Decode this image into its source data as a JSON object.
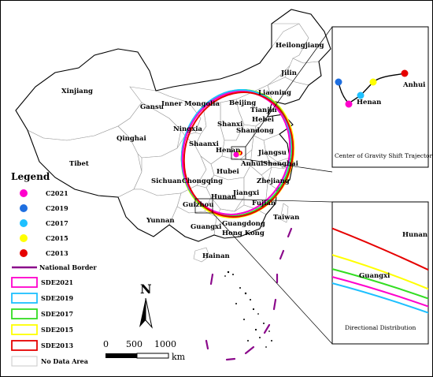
{
  "provinces": [
    {
      "id": "xinjiang",
      "label": "Xinjiang"
    },
    {
      "id": "tibet",
      "label": "Tibet"
    },
    {
      "id": "qinghai",
      "label": "Qinghai"
    },
    {
      "id": "gansu",
      "label": "Gansu"
    },
    {
      "id": "inner-mongolia",
      "label": "Inner Mongolia"
    },
    {
      "id": "heilongjiang",
      "label": "Heilongjiang"
    },
    {
      "id": "jilin",
      "label": "Jilin"
    },
    {
      "id": "liaoning",
      "label": "Liaoning"
    },
    {
      "id": "beijing",
      "label": "Beijing"
    },
    {
      "id": "tianjin",
      "label": "Tianjin"
    },
    {
      "id": "hebei",
      "label": "Hebei"
    },
    {
      "id": "shanxi",
      "label": "Shanxi"
    },
    {
      "id": "ningxia",
      "label": "Ningxia"
    },
    {
      "id": "shandong",
      "label": "Shandong"
    },
    {
      "id": "shaanxi",
      "label": "Shaanxi"
    },
    {
      "id": "henan",
      "label": "Henan"
    },
    {
      "id": "jiangsu",
      "label": "Jiangsu"
    },
    {
      "id": "anhui",
      "label": "Anhui"
    },
    {
      "id": "shanghai",
      "label": "Shanghai"
    },
    {
      "id": "hubei",
      "label": "Hubei"
    },
    {
      "id": "sichuan",
      "label": "Sichuan"
    },
    {
      "id": "chongqing",
      "label": "Chongqing"
    },
    {
      "id": "zhejiang",
      "label": "Zhejiang"
    },
    {
      "id": "hunan",
      "label": "Hunan"
    },
    {
      "id": "jiangxi",
      "label": "Jiangxi"
    },
    {
      "id": "guizhou",
      "label": "Guizhou"
    },
    {
      "id": "fujian",
      "label": "Fujian"
    },
    {
      "id": "taiwan",
      "label": "Taiwan"
    },
    {
      "id": "yunnan",
      "label": "Yunnan"
    },
    {
      "id": "guangxi",
      "label": "Guangxi"
    },
    {
      "id": "guangdong",
      "label": "Guangdong"
    },
    {
      "id": "hongkong",
      "label": "Hong Kong"
    },
    {
      "id": "hainan",
      "label": "Hainan"
    }
  ],
  "legend": {
    "title": "Legend",
    "points": [
      {
        "label": "C2021",
        "color": "#ff00cc"
      },
      {
        "label": "C2019",
        "color": "#1f6fe0"
      },
      {
        "label": "C2017",
        "color": "#1ec0ff"
      },
      {
        "label": "C2015",
        "color": "#ffff00"
      },
      {
        "label": "C2013",
        "color": "#e60000"
      }
    ],
    "border": {
      "label": "National Border",
      "color": "#8b0a8b"
    },
    "ellipses": [
      {
        "label": "SDE2021",
        "color": "#ff00cc"
      },
      {
        "label": "SDE2019",
        "color": "#1ec0ff"
      },
      {
        "label": "SDE2017",
        "color": "#33dd22"
      },
      {
        "label": "SDE2015",
        "color": "#ffff00"
      },
      {
        "label": "SDE2013",
        "color": "#e60000"
      }
    ],
    "nodata": {
      "label": "No Data Area",
      "color": "#ffffff"
    }
  },
  "scale": {
    "ticks": [
      "0",
      "500",
      "1000"
    ],
    "unit": "km"
  },
  "north": {
    "label": "N"
  },
  "inset_top": {
    "caption": "Center of Gravity Shift Trajectory",
    "labels": {
      "henan": "Henan",
      "anhui": "Anhui"
    }
  },
  "inset_bottom": {
    "caption": "Directional Distribution",
    "labels": {
      "guangxi": "Guangxi",
      "hunan": "Hunan"
    }
  }
}
